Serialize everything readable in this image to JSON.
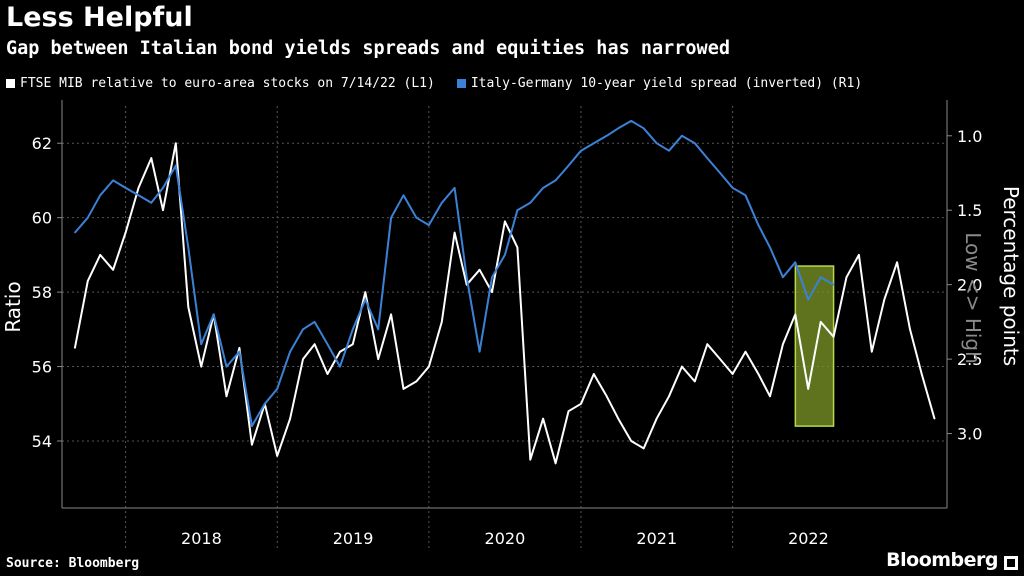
{
  "header": {
    "title": "Less Helpful",
    "subtitle": "Gap between Italian bond yields spreads and equities has narrowed"
  },
  "footer": {
    "source": "Source: Bloomberg",
    "brand": "Bloomberg"
  },
  "colors": {
    "background": "#000000",
    "white_series": "#ffffff",
    "blue_series": "#3b82d6",
    "highlight": "#9ab83a"
  },
  "chart_data": {
    "type": "line",
    "xlabel": "",
    "ylabel_left": "Ratio",
    "ylabel_right": "Percentage points",
    "annotation_right": "Low <> High",
    "x_tick_labels": [
      "2018",
      "2019",
      "2020",
      "2021",
      "2022"
    ],
    "y_left_ticks": [
      "54",
      "56",
      "58",
      "60",
      "62"
    ],
    "y_left_range": [
      52.2,
      63.0
    ],
    "y_right_ticks": [
      "1.0",
      "1.5",
      "2.0",
      "2.5",
      "3.0"
    ],
    "y_right_range": [
      0.8,
      3.5
    ],
    "y_right_inverted": true,
    "grid": true,
    "legend_position": "top-left",
    "highlight_box": {
      "x_from": "2022-05",
      "x_to": "2022-08",
      "y_left_from": 54.4,
      "y_left_to": 58.7
    },
    "series": [
      {
        "name": "FTSE MIB relative to euro-area stocks on 7/14/22 (L1)",
        "axis": "left",
        "points": [
          [
            "2017-08",
            56.5
          ],
          [
            "2017-09",
            58.3
          ],
          [
            "2017-10",
            59.0
          ],
          [
            "2017-11",
            58.6
          ],
          [
            "2017-12",
            59.6
          ],
          [
            "2018-01",
            60.8
          ],
          [
            "2018-02",
            61.6
          ],
          [
            "2018-03",
            60.2
          ],
          [
            "2018-04",
            62.0
          ],
          [
            "2018-05",
            57.6
          ],
          [
            "2018-06",
            56.0
          ],
          [
            "2018-07",
            57.4
          ],
          [
            "2018-08",
            55.2
          ],
          [
            "2018-09",
            56.5
          ],
          [
            "2018-10",
            53.9
          ],
          [
            "2018-11",
            55.0
          ],
          [
            "2018-12",
            53.6
          ],
          [
            "2019-01",
            54.6
          ],
          [
            "2019-02",
            56.2
          ],
          [
            "2019-03",
            56.6
          ],
          [
            "2019-04",
            55.8
          ],
          [
            "2019-05",
            56.4
          ],
          [
            "2019-06",
            56.6
          ],
          [
            "2019-07",
            58.0
          ],
          [
            "2019-08",
            56.2
          ],
          [
            "2019-09",
            57.4
          ],
          [
            "2019-10",
            55.4
          ],
          [
            "2019-11",
            55.6
          ],
          [
            "2019-12",
            56.0
          ],
          [
            "2020-01",
            57.2
          ],
          [
            "2020-02",
            59.6
          ],
          [
            "2020-03",
            58.2
          ],
          [
            "2020-04",
            58.6
          ],
          [
            "2020-05",
            58.0
          ],
          [
            "2020-06",
            59.9
          ],
          [
            "2020-07",
            59.2
          ],
          [
            "2020-08",
            53.5
          ],
          [
            "2020-09",
            54.6
          ],
          [
            "2020-10",
            53.4
          ],
          [
            "2020-11",
            54.8
          ],
          [
            "2020-12",
            55.0
          ],
          [
            "2021-01",
            55.8
          ],
          [
            "2021-02",
            55.2
          ],
          [
            "2021-03",
            54.6
          ],
          [
            "2021-04",
            54.0
          ],
          [
            "2021-05",
            53.8
          ],
          [
            "2021-06",
            54.6
          ],
          [
            "2021-07",
            55.2
          ],
          [
            "2021-08",
            56.0
          ],
          [
            "2021-09",
            55.6
          ],
          [
            "2021-10",
            56.6
          ],
          [
            "2021-11",
            56.2
          ],
          [
            "2021-12",
            55.8
          ],
          [
            "2022-01",
            56.4
          ],
          [
            "2022-02",
            55.8
          ],
          [
            "2022-03",
            55.2
          ],
          [
            "2022-04",
            56.6
          ],
          [
            "2022-05",
            57.4
          ],
          [
            "2022-06",
            55.4
          ],
          [
            "2022-07",
            57.2
          ],
          [
            "2022-08",
            56.8
          ],
          [
            "2022-09",
            58.4
          ],
          [
            "2022-10",
            59.0
          ],
          [
            "2022-11",
            56.4
          ],
          [
            "2022-12",
            57.8
          ],
          [
            "2023-01",
            58.8
          ],
          [
            "2023-02",
            57.0
          ],
          [
            "2023-03",
            55.8
          ],
          [
            "2023-04",
            54.6
          ]
        ]
      },
      {
        "name": "Italy-Germany 10-year yield spread (inverted) (R1)",
        "axis": "right",
        "points": [
          [
            "2017-08",
            1.65
          ],
          [
            "2017-09",
            1.55
          ],
          [
            "2017-10",
            1.4
          ],
          [
            "2017-11",
            1.3
          ],
          [
            "2017-12",
            1.35
          ],
          [
            "2018-01",
            1.4
          ],
          [
            "2018-02",
            1.45
          ],
          [
            "2018-03",
            1.35
          ],
          [
            "2018-04",
            1.2
          ],
          [
            "2018-05",
            1.75
          ],
          [
            "2018-06",
            2.4
          ],
          [
            "2018-07",
            2.2
          ],
          [
            "2018-08",
            2.55
          ],
          [
            "2018-09",
            2.45
          ],
          [
            "2018-10",
            2.95
          ],
          [
            "2018-11",
            2.8
          ],
          [
            "2018-12",
            2.7
          ],
          [
            "2019-01",
            2.45
          ],
          [
            "2019-02",
            2.3
          ],
          [
            "2019-03",
            2.25
          ],
          [
            "2019-04",
            2.4
          ],
          [
            "2019-05",
            2.55
          ],
          [
            "2019-06",
            2.3
          ],
          [
            "2019-07",
            2.1
          ],
          [
            "2019-08",
            2.3
          ],
          [
            "2019-09",
            1.55
          ],
          [
            "2019-10",
            1.4
          ],
          [
            "2019-11",
            1.55
          ],
          [
            "2019-12",
            1.6
          ],
          [
            "2020-01",
            1.45
          ],
          [
            "2020-02",
            1.35
          ],
          [
            "2020-03",
            1.95
          ],
          [
            "2020-04",
            2.45
          ],
          [
            "2020-05",
            1.95
          ],
          [
            "2020-06",
            1.8
          ],
          [
            "2020-07",
            1.5
          ],
          [
            "2020-08",
            1.45
          ],
          [
            "2020-09",
            1.35
          ],
          [
            "2020-10",
            1.3
          ],
          [
            "2020-11",
            1.2
          ],
          [
            "2020-12",
            1.1
          ],
          [
            "2021-01",
            1.05
          ],
          [
            "2021-02",
            1.0
          ],
          [
            "2021-03",
            0.95
          ],
          [
            "2021-04",
            0.9
          ],
          [
            "2021-05",
            0.95
          ],
          [
            "2021-06",
            1.05
          ],
          [
            "2021-07",
            1.1
          ],
          [
            "2021-08",
            1.0
          ],
          [
            "2021-09",
            1.05
          ],
          [
            "2021-10",
            1.15
          ],
          [
            "2021-11",
            1.25
          ],
          [
            "2021-12",
            1.35
          ],
          [
            "2022-01",
            1.4
          ],
          [
            "2022-02",
            1.6
          ],
          [
            "2022-03",
            1.75
          ],
          [
            "2022-04",
            1.95
          ],
          [
            "2022-05",
            1.85
          ],
          [
            "2022-06",
            2.1
          ],
          [
            "2022-07",
            1.95
          ],
          [
            "2022-08",
            2.0
          ]
        ]
      }
    ]
  }
}
